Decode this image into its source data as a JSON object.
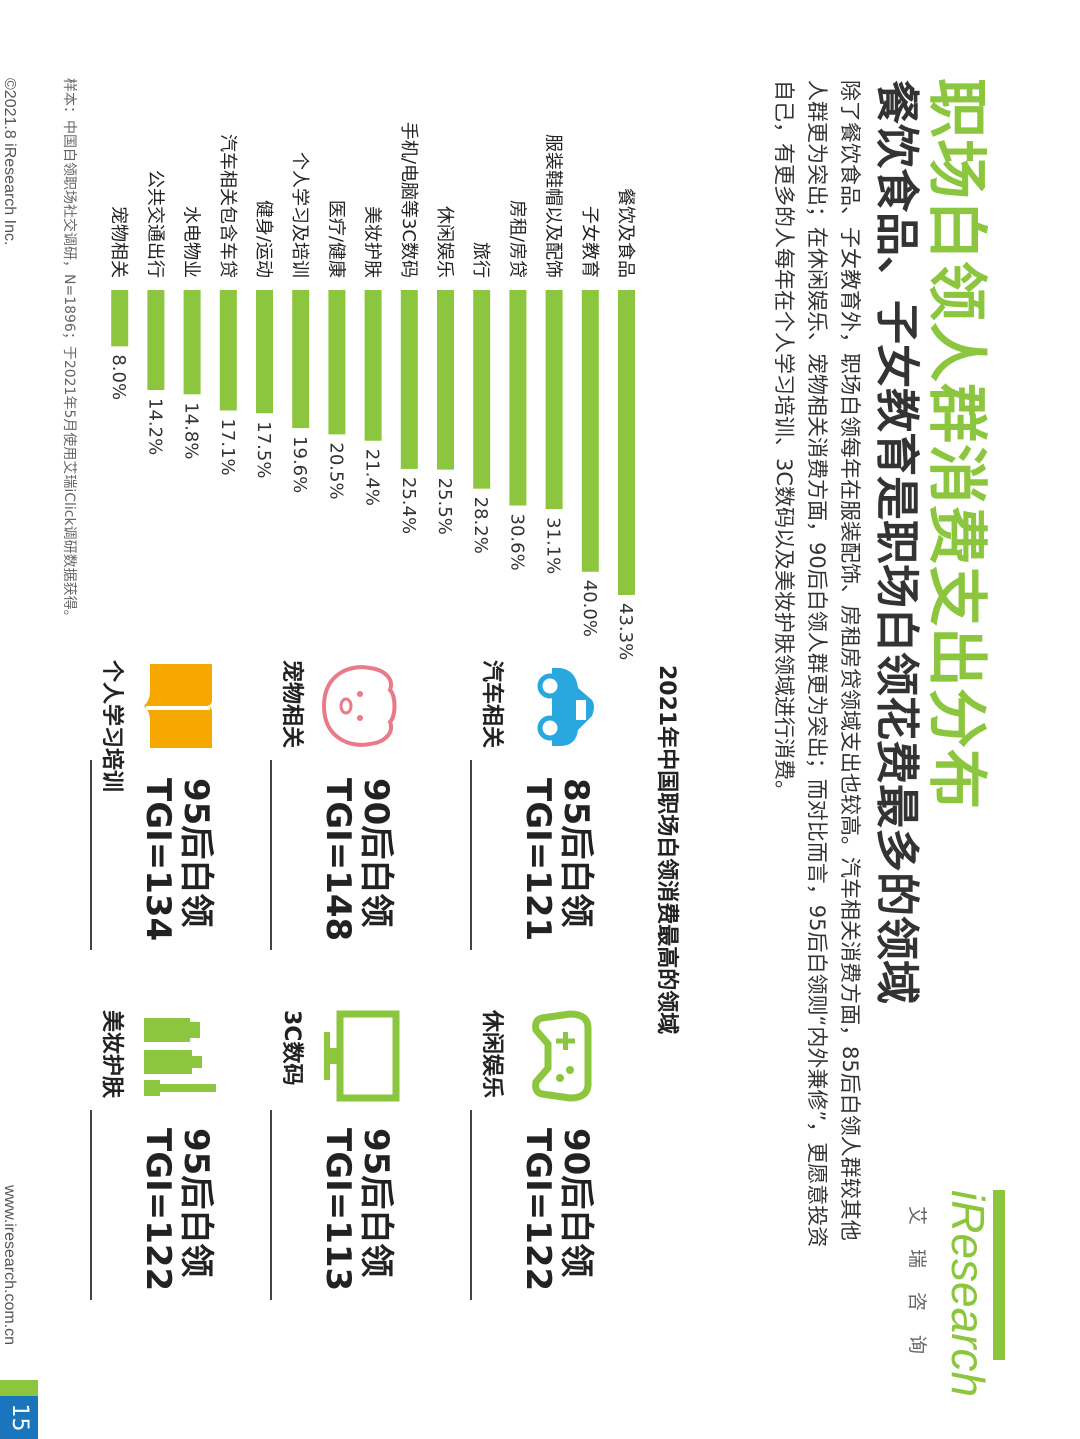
{
  "header": {
    "title": "职场白领人群消费支出分布",
    "subtitle": "餐饮食品、子女教育是职场白领花费最多的领域",
    "description": "除了餐饮食品、子女教育外，职场白领每年在服装配饰、房租房贷领域支出也较高。汽车相关消费方面，85后白领人群较其他人群更为突出；在休闲娱乐、宠物相关消费方面，90后白领人群更为突出；而对比而言，95后白领则“内外兼修”，更愿意投资自己，有更多的人每年在个人学习培训、3C数码以及美妆护肤领域进行消费。"
  },
  "logo": {
    "brand": "iResearch",
    "cn": "艾瑞咨询"
  },
  "panel": {
    "title": "2021年中国职场白领消费最高的领域",
    "cards": [
      {
        "label": "汽车相关",
        "group": "85后白领",
        "tgi": "TGI=121",
        "icon": "car-icon",
        "color": "#29a8e0"
      },
      {
        "label": "休闲娱乐",
        "group": "90后白领",
        "tgi": "TGI=122",
        "icon": "gamepad-icon",
        "color": "#8cc63f"
      },
      {
        "label": "宠物相关",
        "group": "90后白领",
        "tgi": "TGI=148",
        "icon": "pet-face-icon",
        "color": "#e87a8a"
      },
      {
        "label": "3C数码",
        "group": "95后白领",
        "tgi": "TGI=113",
        "icon": "monitor-icon",
        "color": "#8cc63f"
      },
      {
        "label": "个人学习培训",
        "group": "95后白领",
        "tgi": "TGI=134",
        "icon": "book-icon",
        "color": "#f6a800"
      },
      {
        "label": "美妆护肤",
        "group": "95后白领",
        "tgi": "TGI=122",
        "icon": "cosmetics-icon",
        "color": "#8cc63f"
      }
    ]
  },
  "chart_data": {
    "type": "bar",
    "orientation": "horizontal",
    "title": "",
    "categories": [
      "餐饮及食品",
      "子女教育",
      "服装鞋帽以及配饰",
      "房租/房贷",
      "旅行",
      "休闲娱乐",
      "手机/电脑等3C数码",
      "美妆护肤",
      "医疗/健康",
      "个人学习及培训",
      "健身/运动",
      "汽车相关包含车贷",
      "水电物业",
      "公共交通出行",
      "宠物相关"
    ],
    "values": [
      43.3,
      40.0,
      31.1,
      30.6,
      28.2,
      25.5,
      25.4,
      21.4,
      20.5,
      19.6,
      17.5,
      17.1,
      14.8,
      14.2,
      8.0
    ],
    "value_labels": [
      "43.3%",
      "40.0%",
      "31.1%",
      "30.6%",
      "28.2%",
      "25.5%",
      "25.4%",
      "21.4%",
      "20.5%",
      "19.6%",
      "17.5%",
      "17.1%",
      "14.8%",
      "14.2%",
      "8.0%"
    ],
    "unit": "%",
    "xlim": [
      0,
      43.3
    ],
    "grid": false,
    "bar_color": "#8cc63f"
  },
  "footer": {
    "note": "样本：中国白领职场社交调研，N=1896；于2021年5月使用艾瑞iClick调研数据获得。",
    "copyright": "©2021.8 iResearch Inc.",
    "url": "www.iresearch.com.cn",
    "page": "15"
  }
}
